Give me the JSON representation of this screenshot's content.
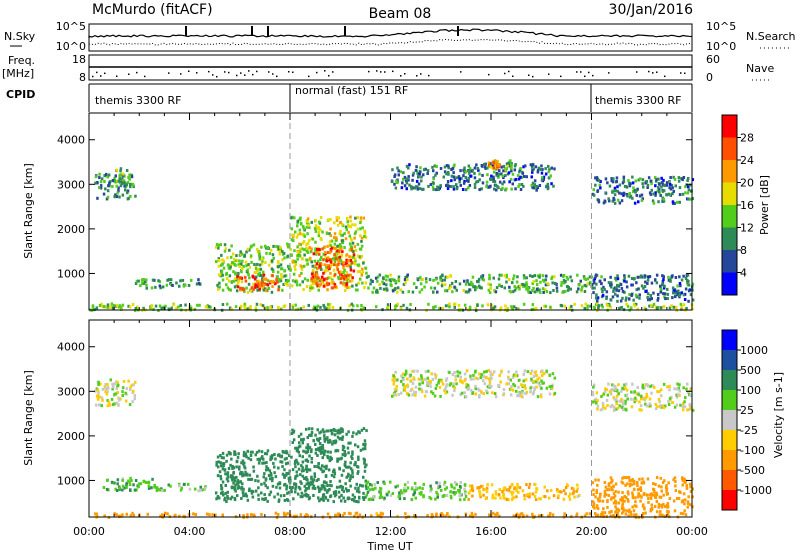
{
  "header": {
    "station": "McMurdo (fitACF)",
    "beam": "Beam 08",
    "date": "30/Jan/2016"
  },
  "top_panels": {
    "nsky_label": "N.Sky",
    "nsky_ticks": [
      "10^5",
      "10^0"
    ],
    "nsearch_label": "N.Search",
    "nsearch_ticks": [
      "10^5",
      "10^0"
    ],
    "freq_label": "Freq.",
    "freq_unit": "[MHz]",
    "freq_ticks": [
      "18",
      "8"
    ],
    "nave_label": "Nave",
    "nave_ticks": [
      "60",
      "0"
    ],
    "cpid_label": "CPID",
    "cpid_segments": [
      {
        "label": "themis 3300 RF",
        "start_hour": 0,
        "end_hour": 8
      },
      {
        "label": "normal (fast) 151 RF",
        "start_hour": 8,
        "end_hour": 20
      },
      {
        "label": "themis 3300 RF",
        "start_hour": 20,
        "end_hour": 24
      }
    ]
  },
  "x_axis": {
    "label": "Time UT",
    "ticks": [
      "00:00",
      "04:00",
      "08:00",
      "12:00",
      "16:00",
      "20:00",
      "00:00"
    ],
    "range_hours": [
      0,
      24
    ]
  },
  "colors": {
    "power": [
      "#0000ff",
      "#26469a",
      "#2e8b57",
      "#52cd1c",
      "#e6dc00",
      "#ff9900",
      "#ff5000",
      "#ff0000"
    ],
    "velocity": [
      "#ff0000",
      "#ff5a00",
      "#ff9b00",
      "#ffcd00",
      "#c8c8c8",
      "#52cd1c",
      "#2e8b57",
      "#1e50a0",
      "#0000ff"
    ]
  },
  "chart_data": [
    {
      "type": "heatmap",
      "title": "",
      "xlabel": "",
      "ylabel": "Slant Range [km]",
      "xlim": [
        0,
        24
      ],
      "ylim": [
        180,
        4600
      ],
      "yticks": [
        "1000",
        "2000",
        "3000",
        "4000"
      ],
      "colorbar": {
        "label": "Power [dB]",
        "ticks": [
          "4",
          "8",
          "12",
          "16",
          "20",
          "24",
          "28"
        ],
        "range": [
          0,
          32
        ]
      },
      "regions": [
        {
          "x": [
            0.2,
            1.8
          ],
          "y": [
            2700,
            3300
          ],
          "value": 10
        },
        {
          "x": [
            1.0,
            1.5
          ],
          "y": [
            3000,
            3400
          ],
          "value": 12
        },
        {
          "x": [
            1.8,
            4.5
          ],
          "y": [
            700,
            900
          ],
          "value": 10
        },
        {
          "x": [
            5.0,
            8.0
          ],
          "y": [
            600,
            1700
          ],
          "value": 14
        },
        {
          "x": [
            5.8,
            7.5
          ],
          "y": [
            650,
            1000
          ],
          "value": 26
        },
        {
          "x": [
            8.0,
            11.0
          ],
          "y": [
            650,
            2300
          ],
          "value": 16
        },
        {
          "x": [
            8.8,
            10.5
          ],
          "y": [
            700,
            1600
          ],
          "value": 26
        },
        {
          "x": [
            11.0,
            20.0
          ],
          "y": [
            600,
            1000
          ],
          "value": 12
        },
        {
          "x": [
            12.0,
            18.5
          ],
          "y": [
            2900,
            3500
          ],
          "value": 8
        },
        {
          "x": [
            16.0,
            16.8
          ],
          "y": [
            3300,
            3600
          ],
          "value": 14
        },
        {
          "x": [
            15.8,
            16.3
          ],
          "y": [
            3400,
            3550
          ],
          "value": 24
        },
        {
          "x": [
            20.0,
            24.0
          ],
          "y": [
            2600,
            3200
          ],
          "value": 8
        },
        {
          "x": [
            20.0,
            24.0
          ],
          "y": [
            400,
            1000
          ],
          "value": 8
        },
        {
          "x": [
            0.0,
            24.0
          ],
          "y": [
            200,
            350
          ],
          "value": 14
        }
      ]
    },
    {
      "type": "heatmap",
      "title": "",
      "xlabel": "Time UT",
      "ylabel": "Slant Range [km]",
      "xlim": [
        0,
        24
      ],
      "ylim": [
        180,
        4600
      ],
      "yticks": [
        "1000",
        "2000",
        "3000",
        "4000"
      ],
      "colorbar": {
        "label": "Velocity [m s-1]",
        "ticks": [
          "1000",
          "500",
          "100",
          "25",
          "-25",
          "-100",
          "-500",
          "-1000"
        ]
      },
      "regions": [
        {
          "x": [
            0.2,
            1.8
          ],
          "y": [
            2700,
            3300
          ],
          "value": 0
        },
        {
          "x": [
            0.5,
            2.5
          ],
          "y": [
            800,
            1100
          ],
          "value": 80
        },
        {
          "x": [
            2.5,
            4.8
          ],
          "y": [
            800,
            950
          ],
          "value": 60
        },
        {
          "x": [
            5.0,
            8.0
          ],
          "y": [
            550,
            1700
          ],
          "value": 300
        },
        {
          "x": [
            8.0,
            11.0
          ],
          "y": [
            550,
            2200
          ],
          "value": 250
        },
        {
          "x": [
            11.0,
            15.0
          ],
          "y": [
            600,
            1000
          ],
          "value": 60
        },
        {
          "x": [
            15.0,
            19.5
          ],
          "y": [
            600,
            950
          ],
          "value": -80
        },
        {
          "x": [
            12.0,
            18.5
          ],
          "y": [
            2900,
            3500
          ],
          "value": 0
        },
        {
          "x": [
            20.0,
            24.0
          ],
          "y": [
            300,
            1100
          ],
          "value": -300
        },
        {
          "x": [
            20.0,
            24.0
          ],
          "y": [
            2600,
            3200
          ],
          "value": 0
        },
        {
          "x": [
            0.0,
            24.0
          ],
          "y": [
            200,
            300
          ],
          "value": -150
        }
      ]
    }
  ]
}
